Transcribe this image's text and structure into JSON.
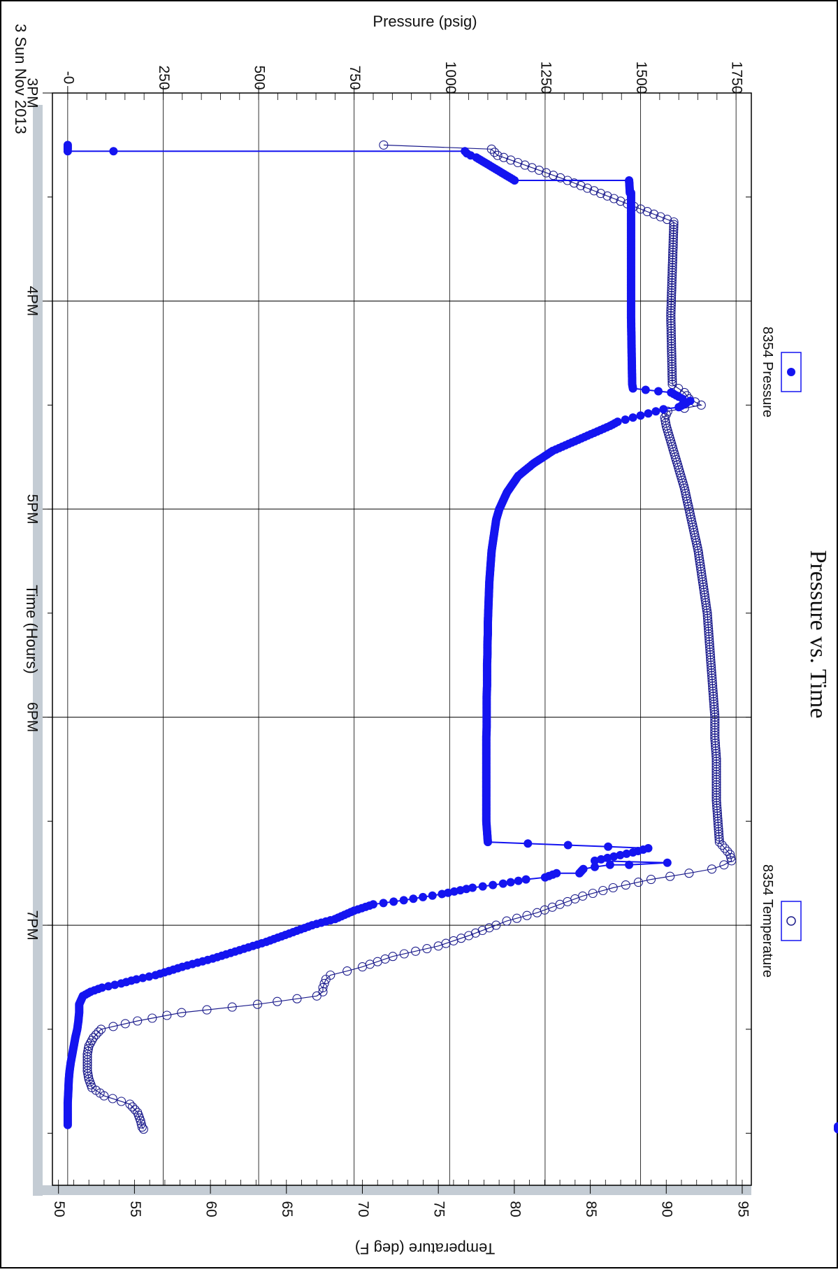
{
  "chart_data": {
    "type": "scatter",
    "orientation": "rotated-90-clockwise",
    "title": "Pressure vs. Time",
    "xlabel": "Time (Hours)",
    "x_date_label": "3 Sun Nov 2013",
    "x_ticks": [
      "3PM",
      "4PM",
      "5PM",
      "6PM",
      "7PM"
    ],
    "x_range_hours": [
      15.0,
      20.25
    ],
    "y_left": {
      "label": "Pressure (psig)",
      "ticks": [
        "-0",
        "250",
        "500",
        "750",
        "1000",
        "1250",
        "1500",
        "1750"
      ],
      "range": [
        -40,
        1790
      ]
    },
    "y_right": {
      "label": "Temperature (deg F)",
      "ticks": [
        "50",
        "55",
        "60",
        "65",
        "70",
        "75",
        "80",
        "85",
        "90",
        "95"
      ],
      "range": [
        49.6,
        95.6
      ]
    },
    "grid": true,
    "legend_placement": "top",
    "series": [
      {
        "name": "8354 Pressure",
        "axis": "pressure",
        "marker": "filled-circle",
        "color": "#1414f0",
        "x_hours": [
          15.25,
          15.27,
          15.28,
          15.28,
          15.28,
          15.29,
          15.3,
          15.31,
          15.42,
          15.42,
          15.48,
          15.48,
          15.52,
          15.53,
          15.54,
          15.55,
          15.57,
          15.58,
          15.6,
          15.62,
          16.07,
          16.4,
          16.42,
          16.44,
          16.46,
          16.47,
          16.48,
          16.49,
          16.51,
          16.52,
          16.53,
          16.54,
          16.55,
          16.56,
          16.57,
          16.58,
          16.6,
          16.62,
          16.64,
          16.66,
          16.68,
          16.7,
          16.72,
          16.75,
          16.78,
          16.81,
          16.84,
          16.88,
          16.92,
          16.96,
          17.0,
          17.05,
          17.1,
          17.15,
          17.2,
          17.25,
          17.3,
          17.35,
          17.4,
          17.45,
          17.5,
          17.55,
          17.6,
          17.65,
          17.7,
          17.75,
          17.8,
          17.85,
          17.9,
          17.95,
          18.0,
          18.05,
          18.1,
          18.15,
          18.2,
          18.25,
          18.3,
          18.35,
          18.4,
          18.45,
          18.5,
          18.55,
          18.6,
          18.63,
          18.65,
          18.69,
          18.7,
          18.71,
          18.71,
          18.72,
          18.73,
          18.75,
          18.75,
          18.77,
          18.78,
          18.8,
          18.82,
          18.85,
          18.88,
          18.9,
          18.93,
          18.97,
          19.0,
          19.04,
          19.08,
          19.12,
          19.16,
          19.2,
          19.24,
          19.26,
          19.28,
          19.3,
          19.32,
          19.34,
          19.38,
          19.42,
          19.46,
          19.5,
          19.54,
          19.58,
          19.62,
          19.66,
          19.7,
          19.74,
          19.78,
          19.82,
          19.86,
          19.9,
          19.94,
          19.96,
          19.98
        ],
        "pressure": [
          0,
          0,
          0,
          120,
          1040,
          1045,
          1055,
          1070,
          1170,
          1470,
          1472,
          1475,
          1475,
          1475,
          1475,
          1475,
          1475,
          1475,
          1475,
          1475,
          1475,
          1478,
          1480,
          1580,
          1600,
          1610,
          1630,
          1620,
          1600,
          1560,
          1540,
          1520,
          1500,
          1480,
          1460,
          1440,
          1420,
          1395,
          1370,
          1345,
          1320,
          1295,
          1270,
          1245,
          1220,
          1200,
          1180,
          1165,
          1150,
          1140,
          1130,
          1122,
          1118,
          1114,
          1110,
          1108,
          1106,
          1104,
          1103,
          1102,
          1101,
          1100,
          1100,
          1099,
          1099,
          1098,
          1098,
          1098,
          1097,
          1097,
          1097,
          1097,
          1096,
          1096,
          1096,
          1096,
          1096,
          1096,
          1096,
          1096,
          1096,
          1098,
          1100,
          1520,
          1480,
          1380,
          1570,
          1470,
          1420,
          1380,
          1350,
          1340,
          1280,
          1250,
          1200,
          1140,
          1060,
          980,
          880,
          800,
          750,
          700,
          640,
          580,
          520,
          450,
          380,
          300,
          230,
          180,
          140,
          90,
          60,
          40,
          30,
          30,
          28,
          25,
          20,
          16,
          12,
          8,
          5,
          3,
          2,
          1,
          0,
          0,
          0,
          0
        ]
      },
      {
        "name": "8354 Temperature",
        "axis": "temperature",
        "marker": "open-circle",
        "color": "#1c1c8c",
        "x_hours": [
          15.25,
          15.27,
          15.3,
          15.31,
          15.42,
          15.62,
          16.07,
          16.4,
          16.42,
          16.44,
          16.47,
          16.5,
          16.53,
          16.56,
          16.6,
          16.7,
          16.8,
          16.9,
          17.0,
          17.1,
          17.2,
          17.3,
          17.4,
          17.5,
          17.6,
          17.7,
          17.8,
          17.9,
          18.0,
          18.1,
          18.2,
          18.3,
          18.4,
          18.5,
          18.6,
          18.66,
          18.69,
          18.71,
          18.73,
          18.75,
          18.78,
          18.82,
          18.86,
          18.9,
          18.94,
          18.98,
          19.0,
          19.05,
          19.1,
          19.15,
          19.2,
          19.22,
          19.24,
          19.26,
          19.28,
          19.3,
          19.32,
          19.34,
          19.38,
          19.42,
          19.46,
          19.5,
          19.54,
          19.58,
          19.62,
          19.66,
          19.7,
          19.74,
          19.78,
          19.82,
          19.86,
          19.9,
          19.94,
          19.97,
          19.98
        ],
        "temperature": [
          71.4,
          78.5,
          78.9,
          79.3,
          83.5,
          90.5,
          90.3,
          90.4,
          90.8,
          91.2,
          91.5,
          92.3,
          90.1,
          89.9,
          90.0,
          90.4,
          90.8,
          91.2,
          91.5,
          91.8,
          92.1,
          92.3,
          92.5,
          92.7,
          92.8,
          92.9,
          93.0,
          93.1,
          93.2,
          93.2,
          93.3,
          93.3,
          93.3,
          93.4,
          93.5,
          94.2,
          94.3,
          93.8,
          93.0,
          91.5,
          89.0,
          86.5,
          84.5,
          83.0,
          81.5,
          79.5,
          78.8,
          77.0,
          75.0,
          72.0,
          70.0,
          69.0,
          67.9,
          67.6,
          67.5,
          67.4,
          67.4,
          67.0,
          63.1,
          58.1,
          55.2,
          52.8,
          52.3,
          52.0,
          51.9,
          51.9,
          51.9,
          52.0,
          52.2,
          53.0,
          54.7,
          55.2,
          55.4,
          55.5,
          55.6
        ]
      }
    ]
  }
}
